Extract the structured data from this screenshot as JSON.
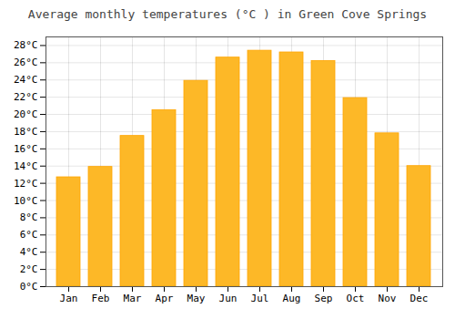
{
  "chart_data": {
    "type": "bar",
    "title": "Average monthly temperatures (°C ) in Green Cove Springs",
    "categories": [
      "Jan",
      "Feb",
      "Mar",
      "Apr",
      "May",
      "Jun",
      "Jul",
      "Aug",
      "Sep",
      "Oct",
      "Nov",
      "Dec"
    ],
    "values": [
      12.7,
      13.9,
      17.5,
      20.5,
      23.9,
      26.6,
      27.4,
      27.2,
      26.2,
      21.9,
      17.8,
      14.0
    ],
    "color": "#FDB827",
    "ylim": [
      0,
      29
    ],
    "yticks": [
      {
        "value": 0,
        "label": "0°C"
      },
      {
        "value": 2,
        "label": "2°C"
      },
      {
        "value": 4,
        "label": "4°C"
      },
      {
        "value": 6,
        "label": "6°C"
      },
      {
        "value": 8,
        "label": "8°C"
      },
      {
        "value": 10,
        "label": "10°C"
      },
      {
        "value": 12,
        "label": "12°C"
      },
      {
        "value": 14,
        "label": "14°C"
      },
      {
        "value": 16,
        "label": "16°C"
      },
      {
        "value": 18,
        "label": "18°C"
      },
      {
        "value": 20,
        "label": "20°C"
      },
      {
        "value": 22,
        "label": "22°C"
      },
      {
        "value": 24,
        "label": "24°C"
      },
      {
        "value": 26,
        "label": "26°C"
      },
      {
        "value": 28,
        "label": "28°C"
      }
    ],
    "grid": true
  }
}
